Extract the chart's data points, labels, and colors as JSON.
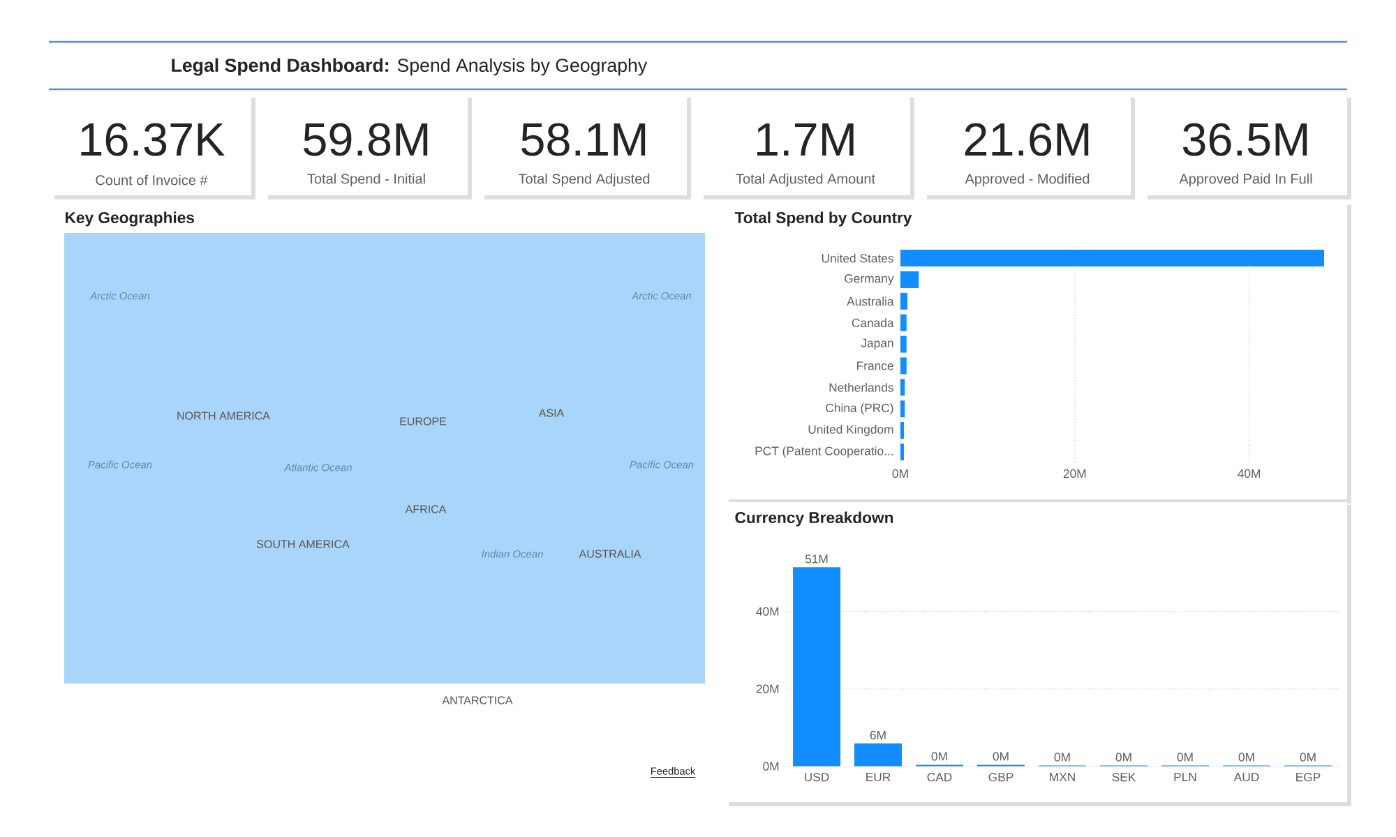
{
  "chart_data": [
    {
      "type": "other",
      "title": "**Legal Spend Dashboard:** Spend Analysis by Geography"
    },
    {
      "type": "other",
      "title": "16.37K",
      "subtitle": "Count of Invoice #"
    },
    {
      "type": "other",
      "title": "59.8M",
      "subtitle": "Total Spend - Initial"
    },
    {
      "type": "other",
      "title": "58.1M",
      "subtitle": "Total Spend Adjusted"
    },
    {
      "type": "other",
      "title": "1.7M",
      "subtitle": "Total Adjusted Amount"
    },
    {
      "type": "other",
      "title": "21.6M",
      "subtitle": "Approved - Modified"
    },
    {
      "type": "other",
      "title": "36.5M",
      "subtitle": "Approved Paid In Full"
    },
    {
      "type": "other",
      "title": "Key Geographies",
      "annotations": [
        "Arctic Ocean",
        "Arctic Ocean",
        "NORTH AMERICA",
        "EUROPE",
        "ASIA",
        "Pacific Ocean",
        "Atlantic Ocean",
        "Pacific Ocean",
        "AFRICA",
        "SOUTH AMERICA",
        "Indian Ocean",
        "AUSTRALIA",
        "ANTARCTICA",
        "Feedback"
      ]
    },
    {
      "type": "bar",
      "orientation": "horizontal",
      "title": "Total Spend by Country",
      "categories": [
        "United States",
        "Germany",
        "Australia",
        "Canada",
        "Japan",
        "France",
        "Netherlands",
        "China (PRC)",
        "United Kingdom",
        "PCT (Patent Cooperatio..."
      ],
      "values": [
        48.6,
        2.1,
        0.8,
        0.7,
        0.7,
        0.7,
        0.5,
        0.5,
        0.4,
        0.4
      ],
      "color": "#118DFF",
      "xlim": [
        0,
        49
      ],
      "xticks": [
        {
          "value": 0,
          "label": "0M"
        },
        {
          "value": 20,
          "label": "20M"
        },
        {
          "value": 40,
          "label": "40M"
        }
      ],
      "grid": "x"
    },
    {
      "type": "bar",
      "title": "Currency Breakdown",
      "categories": [
        "USD",
        "EUR",
        "CAD",
        "GBP",
        "MXN",
        "SEK",
        "PLN",
        "AUD",
        "EGP"
      ],
      "values": [
        51.4,
        5.9,
        0.4,
        0.4,
        0.2,
        0.2,
        0.2,
        0.2,
        0.2
      ],
      "value_labels": [
        "51M",
        "6M",
        "0M",
        "0M",
        "0M",
        "0M",
        "0M",
        "0M",
        "0M"
      ],
      "color": "#118DFF",
      "ylim": [
        0,
        51.5
      ],
      "yticks": [
        {
          "value": 0,
          "label": "0M"
        },
        {
          "value": 20,
          "label": "20M"
        },
        {
          "value": 40,
          "label": "40M"
        }
      ],
      "grid": "y"
    }
  ]
}
